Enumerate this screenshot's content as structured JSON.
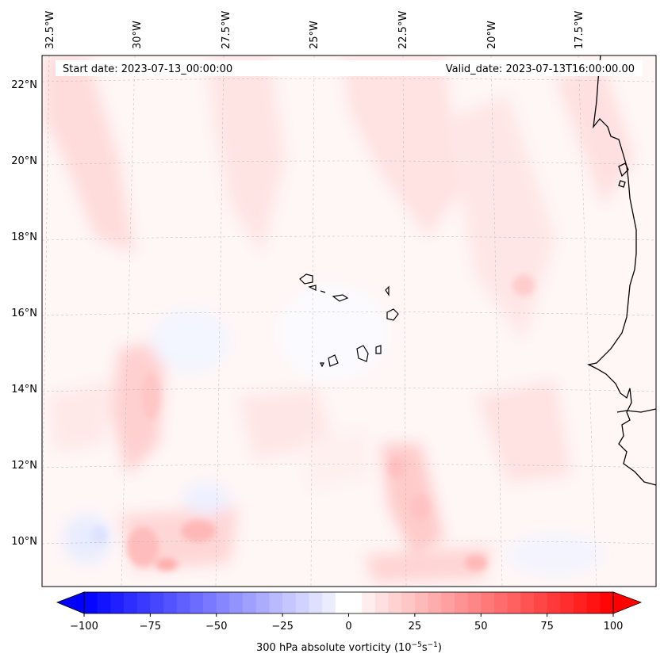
{
  "header": {
    "start_date": "Start date: 2023-07-13_00:00:00",
    "valid_date": "Valid_date: 2023-07-13T16:00:00.00"
  },
  "map": {
    "lon_labels": [
      "32.5°W",
      "30°W",
      "27.5°W",
      "25°W",
      "22.5°W",
      "20°W",
      "17.5°W"
    ],
    "lat_labels": [
      "22°N",
      "20°N",
      "18°N",
      "16°N",
      "14°N",
      "12°N",
      "10°N"
    ]
  },
  "colorbar": {
    "ticks": [
      "−100",
      "−75",
      "−50",
      "−25",
      "0",
      "25",
      "50",
      "75",
      "100"
    ],
    "label": "300 hPa absolute vorticity (10",
    "label_exp1": "−5",
    "label_mid": "s",
    "label_exp2": "−1",
    "label_end": ")",
    "min_color": "#0000ff",
    "mid_color": "#ffffff",
    "max_color": "#ff0000"
  }
}
